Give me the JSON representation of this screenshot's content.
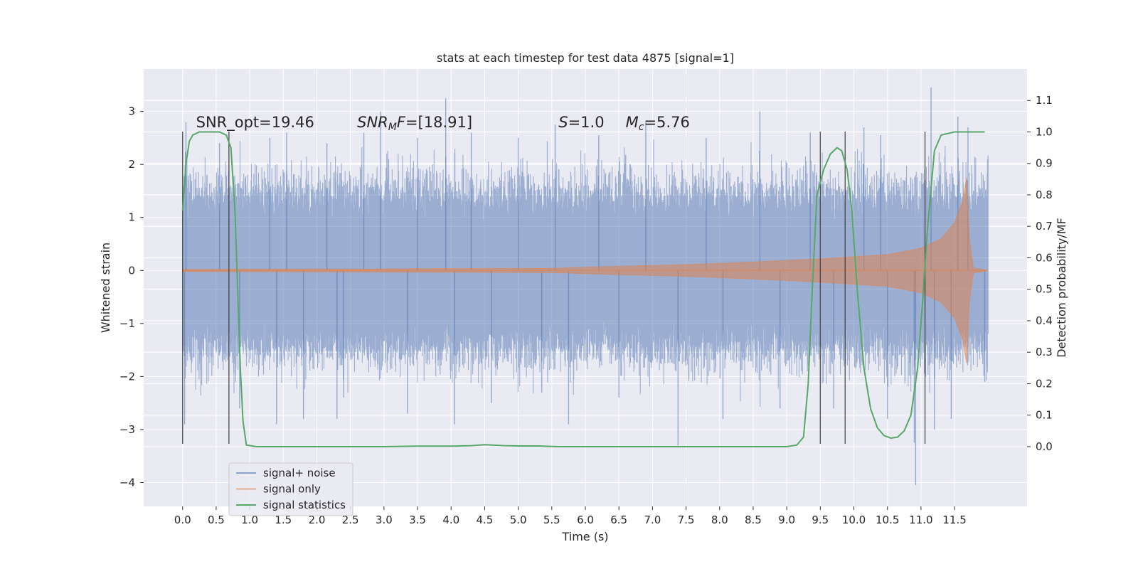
{
  "chart_data": {
    "type": "line",
    "title": "stats at each timestep for test data 4875 [signal=1]",
    "xlabel": "Time (s)",
    "ylabel": "Whitened strain",
    "y2label": "Detection probability/MF",
    "xlim": [
      -0.58,
      12.58
    ],
    "ylim": [
      -4.45,
      3.8
    ],
    "y2lim": [
      -0.19,
      1.2
    ],
    "x_ticks": [
      0.0,
      0.5,
      1.0,
      1.5,
      2.0,
      2.5,
      3.0,
      3.5,
      4.0,
      4.5,
      5.0,
      5.5,
      6.0,
      6.5,
      7.0,
      7.5,
      8.0,
      8.5,
      9.0,
      9.5,
      10.0,
      10.5,
      11.0,
      11.5
    ],
    "x_tick_labels": [
      "0.0",
      "0.5",
      "1.0",
      "1.5",
      "2.0",
      "2.5",
      "3.0",
      "3.5",
      "4.0",
      "4.5",
      "5.0",
      "5.5",
      "6.0",
      "6.5",
      "7.0",
      "7.5",
      "8.0",
      "8.5",
      "9.0",
      "9.5",
      "10.0",
      "10.5",
      "11.0",
      "11.5"
    ],
    "y_ticks": [
      -4,
      -3,
      -2,
      -1,
      0,
      1,
      2,
      3
    ],
    "y_tick_labels": [
      "−4",
      "−3",
      "−2",
      "−1",
      "0",
      "1",
      "2",
      "3"
    ],
    "y2_ticks": [
      0.0,
      0.1,
      0.2,
      0.3,
      0.4,
      0.5,
      0.6,
      0.7,
      0.8,
      0.9,
      1.0,
      1.1
    ],
    "y2_tick_labels": [
      "0.0",
      "0.1",
      "0.2",
      "0.3",
      "0.4",
      "0.5",
      "0.6",
      "0.7",
      "0.8",
      "0.9",
      "1.0",
      "1.1"
    ],
    "grid": true,
    "legend_position": "lower-left",
    "legend": [
      {
        "name": "signal+ noise",
        "color": "#4c72b0"
      },
      {
        "name": "signal only",
        "color": "#dd8452"
      },
      {
        "name": "signal statistics",
        "color": "#55a868"
      }
    ],
    "annotations": [
      {
        "x": 0.2,
        "y": 2.7,
        "parts": [
          {
            "t": "SNR_opt=19.46",
            "i": false
          }
        ]
      },
      {
        "x": 2.6,
        "y": 2.7,
        "parts": [
          {
            "t": "SNR",
            "i": true
          },
          {
            "t": "M",
            "i": true,
            "sub": true
          },
          {
            "t": "F",
            "i": true
          },
          {
            "t": "=[18.91]",
            "i": false
          }
        ]
      },
      {
        "x": 5.6,
        "y": 2.7,
        "parts": [
          {
            "t": "S",
            "i": true
          },
          {
            "t": "=1.0",
            "i": false
          }
        ]
      },
      {
        "x": 6.6,
        "y": 2.7,
        "parts": [
          {
            "t": "M",
            "i": true
          },
          {
            "t": "c",
            "i": true,
            "sub": true
          },
          {
            "t": "=5.76",
            "i": false
          }
        ]
      }
    ],
    "vertical_markers_x": [
      0.0,
      0.69,
      9.5,
      9.87,
      11.06
    ],
    "vertical_markers_yrange": [
      -3.27,
      2.62
    ],
    "noise_series": {
      "name": "signal+ noise",
      "x_range": [
        0.0,
        12.0
      ],
      "envelope_typical": 1.45,
      "peaks": [
        {
          "x": 0.05,
          "y": 2.8
        },
        {
          "x": 0.03,
          "y": -2.9
        },
        {
          "x": 0.55,
          "y": 2.4
        },
        {
          "x": 0.85,
          "y": -2.6
        },
        {
          "x": 1.3,
          "y": 2.5
        },
        {
          "x": 1.4,
          "y": -2.9
        },
        {
          "x": 1.55,
          "y": 2.6
        },
        {
          "x": 1.8,
          "y": -2.8
        },
        {
          "x": 2.15,
          "y": 2.4
        },
        {
          "x": 2.3,
          "y": -2.8
        },
        {
          "x": 2.4,
          "y": -2.4
        },
        {
          "x": 2.7,
          "y": 2.6
        },
        {
          "x": 2.95,
          "y": 3.0
        },
        {
          "x": 3.35,
          "y": -2.7
        },
        {
          "x": 3.5,
          "y": 2.5
        },
        {
          "x": 3.92,
          "y": 3.25
        },
        {
          "x": 4.05,
          "y": -2.9
        },
        {
          "x": 4.3,
          "y": 2.6
        },
        {
          "x": 4.6,
          "y": -2.5
        },
        {
          "x": 5.0,
          "y": 2.5
        },
        {
          "x": 5.35,
          "y": -2.3
        },
        {
          "x": 5.55,
          "y": 2.75
        },
        {
          "x": 5.75,
          "y": -2.9
        },
        {
          "x": 6.2,
          "y": 2.55
        },
        {
          "x": 6.5,
          "y": -2.4
        },
        {
          "x": 6.9,
          "y": 2.8
        },
        {
          "x": 7.38,
          "y": -3.3
        },
        {
          "x": 7.8,
          "y": 2.5
        },
        {
          "x": 8.05,
          "y": -2.8
        },
        {
          "x": 8.6,
          "y": 3.0
        },
        {
          "x": 8.9,
          "y": -2.6
        },
        {
          "x": 9.35,
          "y": 2.6
        },
        {
          "x": 9.7,
          "y": -2.6
        },
        {
          "x": 10.15,
          "y": 2.7
        },
        {
          "x": 10.4,
          "y": 2.55
        },
        {
          "x": 10.5,
          "y": -2.8
        },
        {
          "x": 10.9,
          "y": -3.25
        },
        {
          "x": 10.92,
          "y": -4.05
        },
        {
          "x": 11.15,
          "y": 3.45
        },
        {
          "x": 11.2,
          "y": -3.0
        },
        {
          "x": 11.45,
          "y": -2.8
        },
        {
          "x": 11.55,
          "y": 2.9
        },
        {
          "x": 11.7,
          "y": 2.7
        },
        {
          "x": 11.95,
          "y": -2.1
        }
      ]
    },
    "signal_only": {
      "name": "signal only",
      "amplitude_at_x": [
        [
          0.0,
          0.02
        ],
        [
          3.0,
          0.03
        ],
        [
          5.5,
          0.04
        ],
        [
          6.5,
          0.08
        ],
        [
          7.5,
          0.11
        ],
        [
          8.5,
          0.16
        ],
        [
          9.5,
          0.22
        ],
        [
          10.5,
          0.3
        ],
        [
          11.0,
          0.42
        ],
        [
          11.3,
          0.6
        ],
        [
          11.5,
          0.9
        ],
        [
          11.62,
          1.3
        ],
        [
          11.68,
          1.75
        ],
        [
          11.72,
          0.6
        ],
        [
          11.78,
          0.05
        ],
        [
          12.0,
          0.0
        ]
      ]
    },
    "signal_statistics": {
      "name": "signal statistics",
      "axis": "y2",
      "x": [
        0.0,
        0.05,
        0.1,
        0.15,
        0.25,
        0.4,
        0.55,
        0.65,
        0.72,
        0.78,
        0.82,
        0.86,
        0.9,
        0.95,
        1.1,
        1.5,
        2.0,
        2.5,
        3.0,
        3.5,
        4.0,
        4.3,
        4.5,
        4.8,
        5.0,
        5.3,
        5.6,
        6.0,
        6.5,
        7.0,
        7.5,
        8.0,
        8.5,
        9.0,
        9.15,
        9.25,
        9.32,
        9.38,
        9.45,
        9.55,
        9.65,
        9.75,
        9.82,
        9.9,
        9.97,
        10.05,
        10.15,
        10.25,
        10.35,
        10.45,
        10.55,
        10.65,
        10.75,
        10.85,
        10.95,
        11.02,
        11.1,
        11.2,
        11.3,
        11.5,
        11.7,
        11.95
      ],
      "y": [
        0.75,
        0.9,
        0.97,
        0.99,
        1.0,
        1.0,
        1.0,
        0.99,
        0.95,
        0.75,
        0.5,
        0.25,
        0.08,
        0.005,
        0.0,
        0.0,
        0.0,
        0.0,
        0.0,
        0.0015,
        0.0015,
        0.003,
        0.006,
        0.003,
        0.002,
        0.002,
        0.0,
        0.0,
        0.0,
        0.0,
        0.0,
        0.0,
        0.0,
        0.0,
        0.005,
        0.03,
        0.2,
        0.5,
        0.8,
        0.88,
        0.93,
        0.95,
        0.94,
        0.88,
        0.75,
        0.5,
        0.25,
        0.12,
        0.06,
        0.035,
        0.027,
        0.03,
        0.05,
        0.1,
        0.25,
        0.45,
        0.7,
        0.94,
        0.99,
        1.0,
        1.0,
        1.0
      ]
    }
  }
}
